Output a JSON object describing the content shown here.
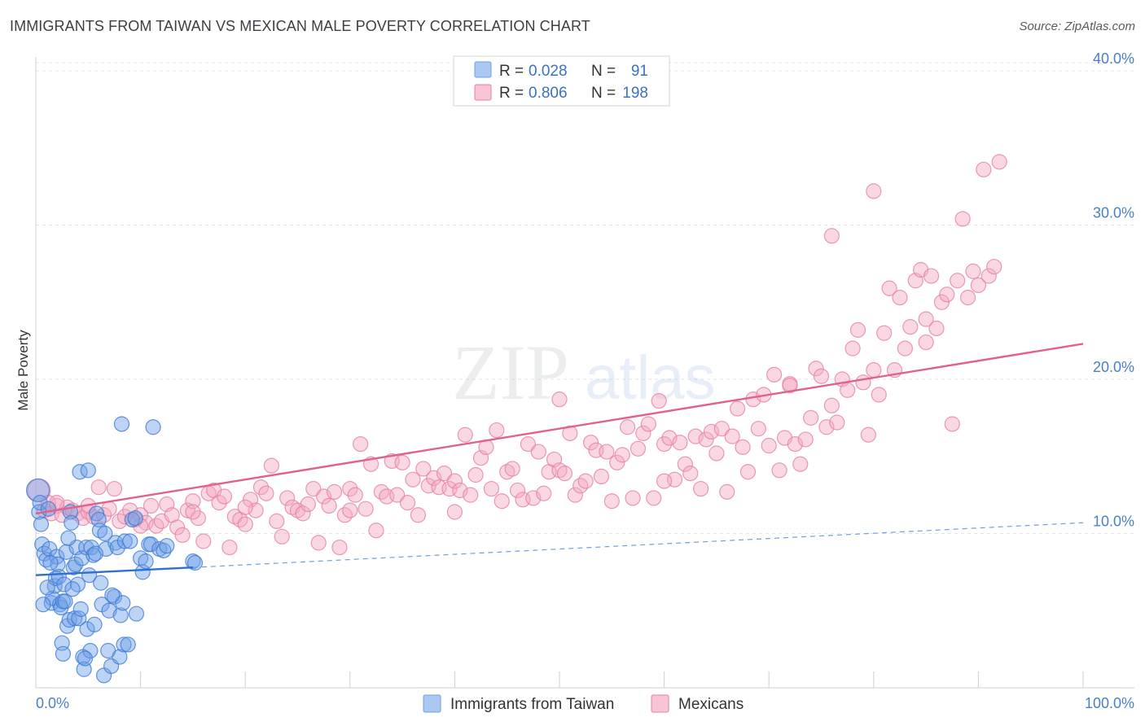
{
  "header": {
    "title": "IMMIGRANTS FROM TAIWAN VS MEXICAN MALE POVERTY CORRELATION CHART",
    "source": "Source: ZipAtlas.com"
  },
  "watermark": {
    "zip": "ZIP",
    "atlas": "atlas"
  },
  "legend_top": {
    "rows": [
      {
        "r_label": "R =",
        "r_value": "0.028",
        "n_label": "N =",
        "n_value": "91",
        "color": "#aac8f2"
      },
      {
        "r_label": "R =",
        "r_value": "0.806",
        "n_label": "N =",
        "n_value": "198",
        "color": "#f6b9cd"
      }
    ]
  },
  "chart_data": {
    "type": "scatter",
    "title": "IMMIGRANTS FROM TAIWAN VS MEXICAN MALE POVERTY CORRELATION CHART",
    "xlabel": "",
    "ylabel": "Male Poverty",
    "xlim": [
      0,
      100
    ],
    "ylim": [
      0,
      40.9
    ],
    "x_tick_labels": [
      "0.0%",
      "100.0%"
    ],
    "y_ticks": [
      {
        "value": 10,
        "label": "10.0%"
      },
      {
        "value": 20,
        "label": "20.0%"
      },
      {
        "value": 30,
        "label": "30.0%"
      },
      {
        "value": 40,
        "label": "40.0%"
      }
    ],
    "grid": "horizontal-dashed",
    "series": [
      {
        "name": "Immigrants from Taiwan",
        "color": "#6fa0e6",
        "stroke": "#3d7bd6",
        "trend": {
          "x0": 0,
          "y0": 7.3,
          "x1": 15,
          "y1": 7.8,
          "x_end": 100,
          "y_end": 10.7
        },
        "points": [
          [
            0.2,
            12.8
          ],
          [
            0.3,
            11.4
          ],
          [
            0.4,
            12.0
          ],
          [
            0.5,
            10.6
          ],
          [
            0.6,
            9.3
          ],
          [
            0.8,
            8.7
          ],
          [
            1.0,
            8.3
          ],
          [
            1.2,
            11.6
          ],
          [
            1.3,
            9.0
          ],
          [
            1.5,
            5.5
          ],
          [
            1.6,
            5.8
          ],
          [
            1.8,
            6.6
          ],
          [
            1.9,
            7.1
          ],
          [
            2.0,
            8.5
          ],
          [
            2.1,
            8.0
          ],
          [
            2.2,
            7.2
          ],
          [
            2.3,
            5.4
          ],
          [
            2.4,
            5.2
          ],
          [
            2.5,
            2.9
          ],
          [
            2.6,
            5.6
          ],
          [
            2.7,
            6.7
          ],
          [
            2.8,
            5.6
          ],
          [
            2.9,
            8.8
          ],
          [
            3.0,
            4.0
          ],
          [
            3.2,
            4.4
          ],
          [
            3.3,
            11.4
          ],
          [
            3.4,
            10.7
          ],
          [
            3.6,
            7.8
          ],
          [
            3.7,
            4.5
          ],
          [
            3.8,
            8.0
          ],
          [
            3.9,
            9.1
          ],
          [
            4.0,
            6.7
          ],
          [
            4.1,
            4.5
          ],
          [
            4.2,
            14.0
          ],
          [
            4.3,
            5.1
          ],
          [
            4.4,
            8.4
          ],
          [
            4.5,
            2.0
          ],
          [
            4.6,
            1.2
          ],
          [
            4.8,
            9.1
          ],
          [
            4.9,
            3.8
          ],
          [
            5.0,
            14.1
          ],
          [
            5.1,
            7.3
          ],
          [
            5.2,
            2.4
          ],
          [
            5.3,
            9.1
          ],
          [
            5.5,
            8.6
          ],
          [
            5.6,
            4.1
          ],
          [
            5.8,
            11.3
          ],
          [
            6.0,
            10.9
          ],
          [
            6.1,
            10.2
          ],
          [
            6.2,
            6.8
          ],
          [
            6.3,
            5.4
          ],
          [
            6.5,
            0.8
          ],
          [
            6.7,
            9.0
          ],
          [
            6.9,
            2.4
          ],
          [
            7.0,
            5.0
          ],
          [
            7.2,
            1.4
          ],
          [
            7.5,
            5.9
          ],
          [
            7.6,
            9.4
          ],
          [
            7.8,
            9.1
          ],
          [
            8.0,
            2.0
          ],
          [
            8.1,
            4.7
          ],
          [
            8.2,
            17.1
          ],
          [
            8.3,
            5.5
          ],
          [
            8.4,
            2.8
          ],
          [
            8.5,
            9.5
          ],
          [
            8.8,
            2.8
          ],
          [
            9.0,
            9.5
          ],
          [
            9.2,
            10.9
          ],
          [
            9.5,
            11.0
          ],
          [
            10.0,
            8.4
          ],
          [
            10.2,
            7.5
          ],
          [
            10.5,
            8.2
          ],
          [
            10.8,
            9.3
          ],
          [
            11.0,
            9.3
          ],
          [
            11.2,
            16.9
          ],
          [
            11.8,
            9.0
          ],
          [
            12.2,
            8.9
          ],
          [
            12.5,
            9.2
          ],
          [
            15.0,
            8.2
          ],
          [
            15.2,
            8.1
          ],
          [
            0.7,
            5.4
          ],
          [
            1.1,
            6.5
          ],
          [
            1.4,
            8.1
          ],
          [
            2.6,
            2.2
          ],
          [
            3.1,
            9.7
          ],
          [
            3.5,
            6.4
          ],
          [
            4.7,
            1.9
          ],
          [
            5.7,
            8.7
          ],
          [
            6.6,
            10.0
          ],
          [
            7.3,
            6.0
          ],
          [
            9.6,
            4.8
          ]
        ]
      },
      {
        "name": "Mexicans",
        "color": "#f3a9c1",
        "stroke": "#e57fa4",
        "trend": {
          "x0": 0,
          "y0": 11.3,
          "x1": 100,
          "y1": 22.3
        },
        "points": [
          [
            0.3,
            12.8
          ],
          [
            0.8,
            11.5
          ],
          [
            1.2,
            12.0
          ],
          [
            1.5,
            11.3
          ],
          [
            2.0,
            11.8
          ],
          [
            2.5,
            11.2
          ],
          [
            3.0,
            11.7
          ],
          [
            3.5,
            11.5
          ],
          [
            4.0,
            11.3
          ],
          [
            4.5,
            11.0
          ],
          [
            5.0,
            11.4
          ],
          [
            5.5,
            11.1
          ],
          [
            6.0,
            13.0
          ],
          [
            6.5,
            11.2
          ],
          [
            7.0,
            11.6
          ],
          [
            7.5,
            12.9
          ],
          [
            8.0,
            10.8
          ],
          [
            8.5,
            11.1
          ],
          [
            9.0,
            11.5
          ],
          [
            9.5,
            10.9
          ],
          [
            10.0,
            11.2
          ],
          [
            10.5,
            10.7
          ],
          [
            11.0,
            11.8
          ],
          [
            11.5,
            10.5
          ],
          [
            12.0,
            10.8
          ],
          [
            12.5,
            11.9
          ],
          [
            13.0,
            11.2
          ],
          [
            13.5,
            10.4
          ],
          [
            14.0,
            9.9
          ],
          [
            14.5,
            11.5
          ],
          [
            15.0,
            12.1
          ],
          [
            15.5,
            11.0
          ],
          [
            16.0,
            9.5
          ],
          [
            16.5,
            12.6
          ],
          [
            17.0,
            12.8
          ],
          [
            17.5,
            12.0
          ],
          [
            18.0,
            12.4
          ],
          [
            18.5,
            9.1
          ],
          [
            19.0,
            11.1
          ],
          [
            19.5,
            10.9
          ],
          [
            20.0,
            10.6
          ],
          [
            20.5,
            12.2
          ],
          [
            21.0,
            11.5
          ],
          [
            21.5,
            13.0
          ],
          [
            22.0,
            12.6
          ],
          [
            22.5,
            14.4
          ],
          [
            23.0,
            10.8
          ],
          [
            23.5,
            9.8
          ],
          [
            24.0,
            12.3
          ],
          [
            24.5,
            11.7
          ],
          [
            25.0,
            11.5
          ],
          [
            25.5,
            11.3
          ],
          [
            26.0,
            11.9
          ],
          [
            26.5,
            12.9
          ],
          [
            27.0,
            9.4
          ],
          [
            27.5,
            12.4
          ],
          [
            28.0,
            11.8
          ],
          [
            28.5,
            12.7
          ],
          [
            29.0,
            9.1
          ],
          [
            29.5,
            11.2
          ],
          [
            30.0,
            12.9
          ],
          [
            30.5,
            12.5
          ],
          [
            31.0,
            15.8
          ],
          [
            31.5,
            11.6
          ],
          [
            32.0,
            14.5
          ],
          [
            32.5,
            10.2
          ],
          [
            33.0,
            12.7
          ],
          [
            33.5,
            12.4
          ],
          [
            34.0,
            14.7
          ],
          [
            34.5,
            12.5
          ],
          [
            35.0,
            14.6
          ],
          [
            35.5,
            12.0
          ],
          [
            36.0,
            13.5
          ],
          [
            36.5,
            11.2
          ],
          [
            37.0,
            14.2
          ],
          [
            37.5,
            13.1
          ],
          [
            38.0,
            13.6
          ],
          [
            38.5,
            13.0
          ],
          [
            39.0,
            13.9
          ],
          [
            39.5,
            12.9
          ],
          [
            40.0,
            13.4
          ],
          [
            40.5,
            12.8
          ],
          [
            41.0,
            16.4
          ],
          [
            41.5,
            12.5
          ],
          [
            42.0,
            13.8
          ],
          [
            42.5,
            14.9
          ],
          [
            43.0,
            15.6
          ],
          [
            43.5,
            12.9
          ],
          [
            44.0,
            16.7
          ],
          [
            44.5,
            12.1
          ],
          [
            45.0,
            14.0
          ],
          [
            45.5,
            14.2
          ],
          [
            46.0,
            12.8
          ],
          [
            46.5,
            12.2
          ],
          [
            47.0,
            15.8
          ],
          [
            47.5,
            12.3
          ],
          [
            48.0,
            15.3
          ],
          [
            48.5,
            12.6
          ],
          [
            49.0,
            14.0
          ],
          [
            49.5,
            14.8
          ],
          [
            50.0,
            14.1
          ],
          [
            50.5,
            13.9
          ],
          [
            51.0,
            16.5
          ],
          [
            51.5,
            12.5
          ],
          [
            52.0,
            13.1
          ],
          [
            52.5,
            13.4
          ],
          [
            53.0,
            15.9
          ],
          [
            53.5,
            15.4
          ],
          [
            54.0,
            13.7
          ],
          [
            54.5,
            15.3
          ],
          [
            55.0,
            12.1
          ],
          [
            55.5,
            14.6
          ],
          [
            56.0,
            15.1
          ],
          [
            56.5,
            16.9
          ],
          [
            57.0,
            12.3
          ],
          [
            57.5,
            15.5
          ],
          [
            58.0,
            16.5
          ],
          [
            58.5,
            17.1
          ],
          [
            59.0,
            12.3
          ],
          [
            59.5,
            18.6
          ],
          [
            60.0,
            15.8
          ],
          [
            60.5,
            16.2
          ],
          [
            61.0,
            13.5
          ],
          [
            61.5,
            15.9
          ],
          [
            62.0,
            14.5
          ],
          [
            62.5,
            13.9
          ],
          [
            63.0,
            16.3
          ],
          [
            63.5,
            12.9
          ],
          [
            64.0,
            16.1
          ],
          [
            64.5,
            16.6
          ],
          [
            65.0,
            15.2
          ],
          [
            65.5,
            16.8
          ],
          [
            66.0,
            12.7
          ],
          [
            66.5,
            16.3
          ],
          [
            67.0,
            18.1
          ],
          [
            67.5,
            15.6
          ],
          [
            68.0,
            14.0
          ],
          [
            68.5,
            18.7
          ],
          [
            69.0,
            16.8
          ],
          [
            69.5,
            19.0
          ],
          [
            70.0,
            15.7
          ],
          [
            70.5,
            20.3
          ],
          [
            71.0,
            14.1
          ],
          [
            71.5,
            16.2
          ],
          [
            72.0,
            19.7
          ],
          [
            72.5,
            15.8
          ],
          [
            73.0,
            14.5
          ],
          [
            73.5,
            16.1
          ],
          [
            74.0,
            17.5
          ],
          [
            74.5,
            20.7
          ],
          [
            75.0,
            20.2
          ],
          [
            75.5,
            16.9
          ],
          [
            76.0,
            18.3
          ],
          [
            76.5,
            17.2
          ],
          [
            77.0,
            20.0
          ],
          [
            77.5,
            19.3
          ],
          [
            78.0,
            22.0
          ],
          [
            78.5,
            23.2
          ],
          [
            79.0,
            19.8
          ],
          [
            79.5,
            16.4
          ],
          [
            80.0,
            20.6
          ],
          [
            80.5,
            19.0
          ],
          [
            81.0,
            23.0
          ],
          [
            81.5,
            25.9
          ],
          [
            82.0,
            20.6
          ],
          [
            82.5,
            25.3
          ],
          [
            83.0,
            22.0
          ],
          [
            83.5,
            23.4
          ],
          [
            84.0,
            26.4
          ],
          [
            84.5,
            27.1
          ],
          [
            85.0,
            22.4
          ],
          [
            85.5,
            26.7
          ],
          [
            86.0,
            23.3
          ],
          [
            86.5,
            25.0
          ],
          [
            87.0,
            25.5
          ],
          [
            87.5,
            17.1
          ],
          [
            88.0,
            26.4
          ],
          [
            88.5,
            30.4
          ],
          [
            89.0,
            25.3
          ],
          [
            89.5,
            27.0
          ],
          [
            90.0,
            26.1
          ],
          [
            90.5,
            33.6
          ],
          [
            91.0,
            26.7
          ],
          [
            91.5,
            27.3
          ],
          [
            92.0,
            34.1
          ],
          [
            72.0,
            19.6
          ],
          [
            76.0,
            29.3
          ],
          [
            80.0,
            32.2
          ],
          [
            85.0,
            23.9
          ],
          [
            60.0,
            13.4
          ],
          [
            50.0,
            18.7
          ],
          [
            40.0,
            11.4
          ],
          [
            30.0,
            11.5
          ],
          [
            20.0,
            11.7
          ],
          [
            15.0,
            11.4
          ],
          [
            10.0,
            10.5
          ],
          [
            5.0,
            11.8
          ],
          [
            2.0,
            12.0
          ]
        ]
      }
    ]
  },
  "bottom_legend": {
    "items": [
      {
        "label": "Immigrants from Taiwan",
        "color": "#aac8f2",
        "stroke": "#6fa0e6"
      },
      {
        "label": "Mexicans",
        "color": "#f8c5d6",
        "stroke": "#e57fa4"
      }
    ]
  }
}
